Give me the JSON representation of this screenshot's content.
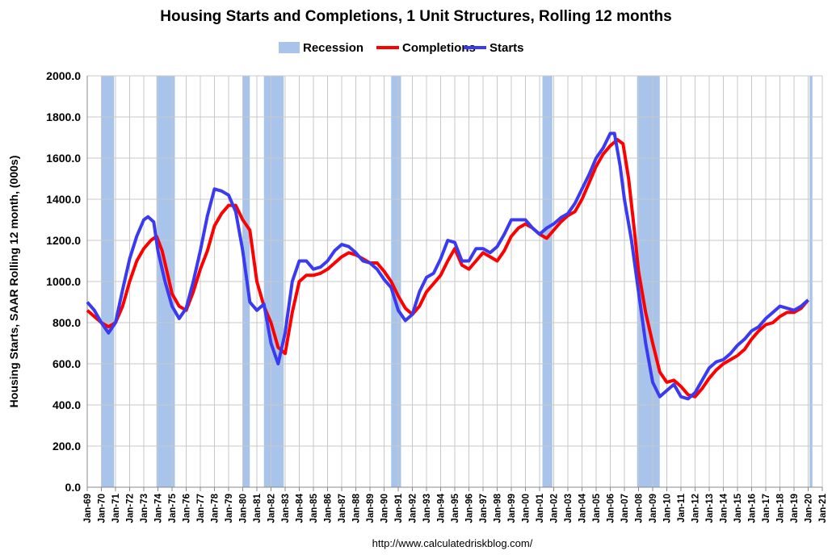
{
  "chart_data": {
    "type": "line",
    "title": "Housing Starts and Completions, 1 Unit Structures, Rolling 12 months",
    "y_label": "Housing Starts, SAAR Rolling 12 month, (000s)",
    "source": "http://www.calculatedriskblog.com/",
    "grid": true,
    "legend": "top",
    "recession": {
      "name": "Recession",
      "color": "#a9c4ea",
      "bands": [
        [
          1970.0,
          1970.9
        ],
        [
          1973.9,
          1975.2
        ],
        [
          1980.0,
          1980.5
        ],
        [
          1981.5,
          1982.9
        ],
        [
          1990.5,
          1991.2
        ],
        [
          2001.2,
          2001.9
        ],
        [
          2007.9,
          2009.5
        ],
        [
          2020.1,
          2020.3
        ]
      ]
    },
    "xlim": [
      1969,
      2021
    ],
    "xticks": [
      {
        "value": 1969,
        "label": "Jan-69"
      },
      {
        "value": 1970,
        "label": "Jan-70"
      },
      {
        "value": 1971,
        "label": "Jan-71"
      },
      {
        "value": 1972,
        "label": "Jan-72"
      },
      {
        "value": 1973,
        "label": "Jan-73"
      },
      {
        "value": 1974,
        "label": "Jan-74"
      },
      {
        "value": 1975,
        "label": "Jan-75"
      },
      {
        "value": 1976,
        "label": "Jan-76"
      },
      {
        "value": 1977,
        "label": "Jan-77"
      },
      {
        "value": 1978,
        "label": "Jan-78"
      },
      {
        "value": 1979,
        "label": "Jan-79"
      },
      {
        "value": 1980,
        "label": "Jan-80"
      },
      {
        "value": 1981,
        "label": "Jan-81"
      },
      {
        "value": 1982,
        "label": "Jan-82"
      },
      {
        "value": 1983,
        "label": "Jan-83"
      },
      {
        "value": 1984,
        "label": "Jan-84"
      },
      {
        "value": 1985,
        "label": "Jan-85"
      },
      {
        "value": 1986,
        "label": "Jan-86"
      },
      {
        "value": 1987,
        "label": "Jan-87"
      },
      {
        "value": 1988,
        "label": "Jan-88"
      },
      {
        "value": 1989,
        "label": "Jan-89"
      },
      {
        "value": 1990,
        "label": "Jan-90"
      },
      {
        "value": 1991,
        "label": "Jan-91"
      },
      {
        "value": 1992,
        "label": "Jan-92"
      },
      {
        "value": 1993,
        "label": "Jan-93"
      },
      {
        "value": 1994,
        "label": "Jan-94"
      },
      {
        "value": 1995,
        "label": "Jan-95"
      },
      {
        "value": 1996,
        "label": "Jan-96"
      },
      {
        "value": 1997,
        "label": "Jan-97"
      },
      {
        "value": 1998,
        "label": "Jan-98"
      },
      {
        "value": 1999,
        "label": "Jan-99"
      },
      {
        "value": 2000,
        "label": "Jan-00"
      },
      {
        "value": 2001,
        "label": "Jan-01"
      },
      {
        "value": 2002,
        "label": "Jan-02"
      },
      {
        "value": 2003,
        "label": "Jan-03"
      },
      {
        "value": 2004,
        "label": "Jan-04"
      },
      {
        "value": 2005,
        "label": "Jan-05"
      },
      {
        "value": 2006,
        "label": "Jan-06"
      },
      {
        "value": 2007,
        "label": "Jan-07"
      },
      {
        "value": 2008,
        "label": "Jan-08"
      },
      {
        "value": 2009,
        "label": "Jan-09"
      },
      {
        "value": 2010,
        "label": "Jan-10"
      },
      {
        "value": 2011,
        "label": "Jan-11"
      },
      {
        "value": 2012,
        "label": "Jan-12"
      },
      {
        "value": 2013,
        "label": "Jan-13"
      },
      {
        "value": 2014,
        "label": "Jan-14"
      },
      {
        "value": 2015,
        "label": "Jan-15"
      },
      {
        "value": 2016,
        "label": "Jan-16"
      },
      {
        "value": 2017,
        "label": "Jan-17"
      },
      {
        "value": 2018,
        "label": "Jan-18"
      },
      {
        "value": 2019,
        "label": "Jan-19"
      },
      {
        "value": 2020,
        "label": "Jan-20"
      },
      {
        "value": 2021,
        "label": "Jan-21"
      }
    ],
    "ylim": [
      0,
      2000
    ],
    "yticks": [
      {
        "value": 0,
        "label": "0.0"
      },
      {
        "value": 200,
        "label": "200.0"
      },
      {
        "value": 400,
        "label": "400.0"
      },
      {
        "value": 600,
        "label": "600.0"
      },
      {
        "value": 800,
        "label": "800.0"
      },
      {
        "value": 1000,
        "label": "1000.0"
      },
      {
        "value": 1200,
        "label": "1200.0"
      },
      {
        "value": 1400,
        "label": "1400.0"
      },
      {
        "value": 1600,
        "label": "1600.0"
      },
      {
        "value": 1800,
        "label": "1800.0"
      },
      {
        "value": 2000,
        "label": "2000.0"
      }
    ],
    "series": [
      {
        "name": "Completions",
        "color": "#ff0000",
        "x": [
          1969.0,
          1969.5,
          1970.0,
          1970.5,
          1971.0,
          1971.5,
          1972.0,
          1972.5,
          1973.0,
          1973.5,
          1973.9,
          1974.3,
          1974.7,
          1975.0,
          1975.5,
          1976.0,
          1976.5,
          1977.0,
          1977.5,
          1978.0,
          1978.5,
          1979.0,
          1979.5,
          1980.0,
          1980.5,
          1981.0,
          1981.5,
          1982.0,
          1982.5,
          1983.0,
          1983.5,
          1984.0,
          1984.5,
          1985.0,
          1985.5,
          1986.0,
          1986.5,
          1987.0,
          1987.5,
          1988.0,
          1988.5,
          1989.0,
          1989.5,
          1990.0,
          1990.5,
          1991.0,
          1991.5,
          1992.0,
          1992.5,
          1993.0,
          1993.5,
          1994.0,
          1994.5,
          1995.0,
          1995.5,
          1996.0,
          1996.5,
          1997.0,
          1997.5,
          1998.0,
          1998.5,
          1999.0,
          1999.5,
          2000.0,
          2000.5,
          2001.0,
          2001.5,
          2002.0,
          2002.5,
          2003.0,
          2003.5,
          2004.0,
          2004.5,
          2005.0,
          2005.5,
          2006.0,
          2006.5,
          2006.9,
          2007.3,
          2007.7,
          2008.0,
          2008.5,
          2009.0,
          2009.5,
          2010.0,
          2010.5,
          2011.0,
          2011.5,
          2012.0,
          2012.5,
          2013.0,
          2013.5,
          2014.0,
          2014.5,
          2015.0,
          2015.5,
          2016.0,
          2016.5,
          2017.0,
          2017.5,
          2018.0,
          2018.5,
          2019.0,
          2019.5,
          2020.0
        ],
        "values": [
          860,
          830,
          800,
          780,
          800,
          880,
          1000,
          1100,
          1160,
          1200,
          1220,
          1150,
          1030,
          940,
          880,
          860,
          950,
          1060,
          1150,
          1270,
          1330,
          1370,
          1370,
          1300,
          1250,
          1000,
          880,
          800,
          680,
          650,
          850,
          1000,
          1030,
          1030,
          1040,
          1060,
          1090,
          1120,
          1140,
          1130,
          1110,
          1090,
          1090,
          1050,
          1000,
          930,
          870,
          840,
          880,
          950,
          990,
          1030,
          1100,
          1160,
          1080,
          1060,
          1100,
          1140,
          1120,
          1100,
          1150,
          1220,
          1260,
          1280,
          1260,
          1230,
          1210,
          1250,
          1290,
          1320,
          1340,
          1400,
          1480,
          1560,
          1620,
          1660,
          1690,
          1670,
          1500,
          1250,
          1050,
          850,
          700,
          560,
          510,
          520,
          490,
          450,
          440,
          480,
          530,
          570,
          600,
          620,
          640,
          670,
          720,
          760,
          790,
          800,
          830,
          850,
          850,
          870,
          910
        ]
      },
      {
        "name": "Starts",
        "color": "#3a3af0",
        "x": [
          1969.0,
          1969.5,
          1970.0,
          1970.5,
          1971.0,
          1971.5,
          1972.0,
          1972.5,
          1973.0,
          1973.3,
          1973.7,
          1974.0,
          1974.5,
          1975.0,
          1975.5,
          1976.0,
          1976.5,
          1977.0,
          1977.5,
          1978.0,
          1978.5,
          1979.0,
          1979.5,
          1980.0,
          1980.5,
          1981.0,
          1981.5,
          1982.0,
          1982.5,
          1983.0,
          1983.5,
          1984.0,
          1984.5,
          1985.0,
          1985.5,
          1986.0,
          1986.5,
          1987.0,
          1987.5,
          1988.0,
          1988.5,
          1989.0,
          1989.5,
          1990.0,
          1990.5,
          1991.0,
          1991.5,
          1992.0,
          1992.5,
          1993.0,
          1993.5,
          1994.0,
          1994.5,
          1995.0,
          1995.5,
          1996.0,
          1996.5,
          1997.0,
          1997.5,
          1998.0,
          1998.5,
          1999.0,
          1999.5,
          2000.0,
          2000.5,
          2001.0,
          2001.5,
          2002.0,
          2002.5,
          2003.0,
          2003.5,
          2004.0,
          2004.5,
          2005.0,
          2005.5,
          2006.0,
          2006.3,
          2006.7,
          2007.0,
          2007.5,
          2008.0,
          2008.5,
          2009.0,
          2009.5,
          2010.0,
          2010.5,
          2011.0,
          2011.5,
          2012.0,
          2012.5,
          2013.0,
          2013.5,
          2014.0,
          2014.5,
          2015.0,
          2015.5,
          2016.0,
          2016.5,
          2017.0,
          2017.5,
          2018.0,
          2018.5,
          2019.0,
          2019.5,
          2020.0
        ],
        "values": [
          900,
          860,
          800,
          750,
          800,
          960,
          1110,
          1220,
          1300,
          1315,
          1290,
          1150,
          1000,
          880,
          820,
          870,
          1000,
          1150,
          1320,
          1450,
          1440,
          1420,
          1340,
          1150,
          900,
          860,
          890,
          700,
          600,
          750,
          1000,
          1100,
          1100,
          1060,
          1070,
          1100,
          1150,
          1180,
          1170,
          1140,
          1100,
          1090,
          1060,
          1010,
          970,
          860,
          810,
          840,
          950,
          1020,
          1040,
          1110,
          1200,
          1190,
          1100,
          1100,
          1160,
          1160,
          1140,
          1170,
          1230,
          1300,
          1300,
          1300,
          1260,
          1230,
          1260,
          1280,
          1310,
          1330,
          1380,
          1450,
          1520,
          1600,
          1650,
          1720,
          1720,
          1560,
          1400,
          1200,
          950,
          700,
          510,
          440,
          470,
          500,
          440,
          430,
          460,
          520,
          580,
          610,
          620,
          650,
          690,
          720,
          760,
          780,
          820,
          850,
          880,
          870,
          860,
          880,
          910
        ]
      }
    ]
  }
}
